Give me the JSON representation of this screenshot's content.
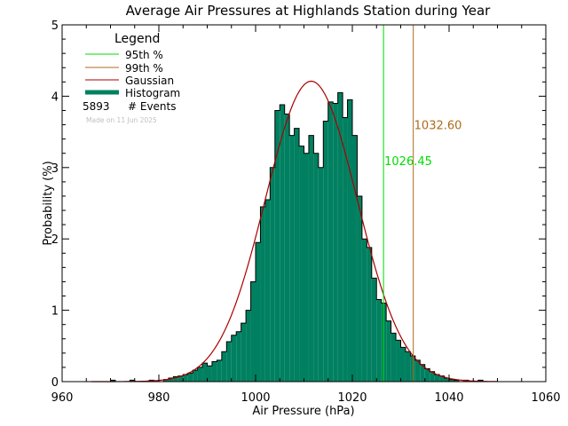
{
  "chart_data": {
    "type": "bar",
    "title": "Average Air Pressures at Highlands Station during Year",
    "xlabel": "Air Pressure (hPa)",
    "ylabel": "Probability (%)",
    "xlim": [
      960,
      1060
    ],
    "ylim": [
      0,
      5
    ],
    "x_ticks": [
      "960",
      "980",
      "1000",
      "1020",
      "1040",
      "1060"
    ],
    "y_ticks": [
      "0",
      "1",
      "2",
      "3",
      "4",
      "5"
    ],
    "grid": false,
    "legend": {
      "title": "Legend",
      "placement": "top-left",
      "entries": [
        {
          "label": "95th %",
          "color": "#00dd00"
        },
        {
          "label": "99th %",
          "color": "#b06a1a"
        },
        {
          "label": "Gaussian",
          "color": "#aa0000"
        },
        {
          "label": "Histogram",
          "color": "#008060"
        }
      ],
      "events_count": "5893",
      "events_label": "# Events",
      "made_on": "Made on 11 Jun 2025"
    },
    "percentile_lines": [
      {
        "name": "95th %",
        "x": 1026.45,
        "label": "1026.45",
        "color": "#00dd00",
        "label_y": 3.1
      },
      {
        "name": "99th %",
        "x": 1032.6,
        "label": "1032.60",
        "color": "#b06a1a",
        "label_y": 3.6
      }
    ],
    "gaussian": {
      "mean": 1011.5,
      "sd": 9.5,
      "peak": 4.21,
      "color": "#aa0000"
    },
    "histogram": {
      "bin_width": 1,
      "color": "#008060",
      "bins": [
        [
          970,
          0.02
        ],
        [
          974,
          0.02
        ],
        [
          978,
          0.02
        ],
        [
          981,
          0.03
        ],
        [
          982,
          0.05
        ],
        [
          983,
          0.07
        ],
        [
          984,
          0.08
        ],
        [
          985,
          0.1
        ],
        [
          986,
          0.12
        ],
        [
          987,
          0.16
        ],
        [
          988,
          0.2
        ],
        [
          989,
          0.26
        ],
        [
          990,
          0.22
        ],
        [
          991,
          0.28
        ],
        [
          992,
          0.3
        ],
        [
          993,
          0.42
        ],
        [
          994,
          0.56
        ],
        [
          995,
          0.65
        ],
        [
          996,
          0.7
        ],
        [
          997,
          0.82
        ],
        [
          998,
          1.0
        ],
        [
          999,
          1.4
        ],
        [
          1000,
          1.95
        ],
        [
          1001,
          2.45
        ],
        [
          1002,
          2.55
        ],
        [
          1003,
          3.0
        ],
        [
          1004,
          3.8
        ],
        [
          1005,
          3.88
        ],
        [
          1006,
          3.75
        ],
        [
          1007,
          3.45
        ],
        [
          1008,
          3.55
        ],
        [
          1009,
          3.3
        ],
        [
          1010,
          3.2
        ],
        [
          1011,
          3.45
        ],
        [
          1012,
          3.2
        ],
        [
          1013,
          3.0
        ],
        [
          1014,
          3.65
        ],
        [
          1015,
          3.92
        ],
        [
          1016,
          3.9
        ],
        [
          1017,
          4.05
        ],
        [
          1018,
          3.7
        ],
        [
          1019,
          3.95
        ],
        [
          1020,
          3.45
        ],
        [
          1021,
          2.6
        ],
        [
          1022,
          2.0
        ],
        [
          1023,
          1.88
        ],
        [
          1024,
          1.45
        ],
        [
          1025,
          1.15
        ],
        [
          1026,
          1.1
        ],
        [
          1027,
          0.85
        ],
        [
          1028,
          0.68
        ],
        [
          1029,
          0.58
        ],
        [
          1030,
          0.48
        ],
        [
          1031,
          0.42
        ],
        [
          1032,
          0.36
        ],
        [
          1033,
          0.3
        ],
        [
          1034,
          0.24
        ],
        [
          1035,
          0.18
        ],
        [
          1036,
          0.14
        ],
        [
          1037,
          0.1
        ],
        [
          1038,
          0.08
        ],
        [
          1039,
          0.05
        ],
        [
          1040,
          0.03
        ],
        [
          1041,
          0.02
        ],
        [
          1043,
          0.02
        ],
        [
          1046,
          0.02
        ]
      ]
    }
  }
}
